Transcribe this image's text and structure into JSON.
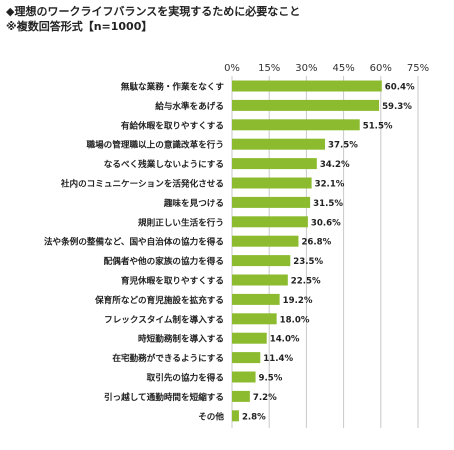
{
  "title": "◆理想のワークライフバランスを実現するために必要なこと",
  "subtitle": "※複数回答形式【n=1000】",
  "chart_data": {
    "type": "bar",
    "orientation": "horizontal",
    "unit": "%",
    "xlim": [
      0,
      75
    ],
    "ticks": [
      0,
      15,
      30,
      45,
      60,
      75
    ],
    "tick_labels": [
      "0%",
      "15%",
      "30%",
      "45%",
      "60%",
      "75%"
    ],
    "grid": true,
    "bar_color": "#8cbb2f",
    "categories": [
      "無駄な業務・作業をなくす",
      "給与水準をあげる",
      "有給休暇を取りやすくする",
      "職場の管理職以上の意識改革を行う",
      "なるべく残業しないようにする",
      "社内のコミュニケーションを活発化させる",
      "趣味を見つける",
      "規則正しい生活を行う",
      "法や条例の整備など、国や自治体の協力を得る",
      "配偶者や他の家族の協力を得る",
      "育児休暇を取りやすくする",
      "保育所などの育児施設を拡充する",
      "フレックスタイム制を導入する",
      "時短勤務制を導入する",
      "在宅勤務ができるようにする",
      "取引先の協力を得る",
      "引っ越して通勤時間を短縮する",
      "その他"
    ],
    "values": [
      60.4,
      59.3,
      51.5,
      37.5,
      34.2,
      32.1,
      31.5,
      30.6,
      26.8,
      23.5,
      22.5,
      19.2,
      18.0,
      14.0,
      11.4,
      9.5,
      7.2,
      2.8
    ],
    "value_labels": [
      "60.4%",
      "59.3%",
      "51.5%",
      "37.5%",
      "34.2%",
      "32.1%",
      "31.5%",
      "30.6%",
      "26.8%",
      "23.5%",
      "22.5%",
      "19.2%",
      "18.0%",
      "14.0%",
      "11.4%",
      "9.5%",
      "7.2%",
      "2.8%"
    ]
  }
}
